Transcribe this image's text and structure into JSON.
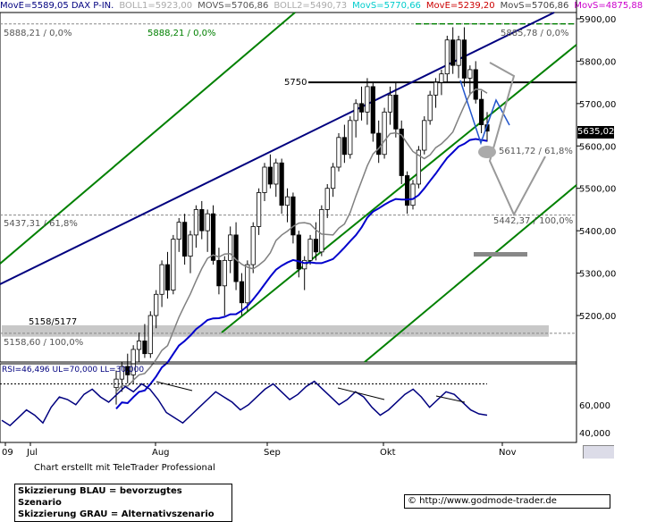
{
  "legend": [
    {
      "text": "MovE=5589,05 DAX P-IN.",
      "color": "#00007f"
    },
    {
      "text": "BOLL1=5923,00",
      "color": "#aaaaaa"
    },
    {
      "text": "MOVS=5706,86",
      "color": "#555555"
    },
    {
      "text": "BOLL2=5490,73",
      "color": "#aaaaaa"
    },
    {
      "text": "MovS=5770,66",
      "color": "#00cccc"
    },
    {
      "text": "MovE=5239,20",
      "color": "#cc0000"
    },
    {
      "text": "MovS=5706,86",
      "color": "#444444"
    },
    {
      "text": "MovS=4875,88",
      "color": "#cc00cc"
    }
  ],
  "price_axis": {
    "ticks": [
      "5900,00",
      "5800,00",
      "5700,00",
      "5600,00",
      "5500,00",
      "5400,00",
      "5300,00",
      "5200,00"
    ],
    "last_price": "5635,02"
  },
  "rsi_axis": {
    "ticks": [
      "60,000",
      "40,000"
    ]
  },
  "x_axis": {
    "labels": [
      "09",
      "Jul",
      "Aug",
      "Sep",
      "Okt",
      "Nov"
    ]
  },
  "annotations": {
    "a5888_left": "5888,21 / 0,0%",
    "a5888_mid": "5888,21 / 0,0%",
    "a5885": "5885,78 / 0,0%",
    "a5750": "5750",
    "a5611": "5611,72 / 61,8%",
    "a5437": "5437,31 / 61,8%",
    "a5442": "5442,37 / 100,0%",
    "a5158_5177": "5158/5177",
    "a5158": "5158,60 / 100,0%"
  },
  "rsi_label": "RSI=46,496 UL=70,000 LL=30,000",
  "credit": "Chart erstellt mit TeleTrader Professional",
  "notes": [
    "Skizzierung BLAU = bevorzugtes Szenario",
    "Skizzierung GRAU = Alternativszenario"
  ],
  "url": "© http://www.godmode-trader.de",
  "colors": {
    "blue": "#00007f",
    "green": "#008000",
    "gray": "#808080",
    "light_gray": "#c8c8c8",
    "scenario_blue": "#2255cc",
    "scenario_gray": "#999999"
  },
  "chart_data": {
    "type": "line",
    "title": "DAX P-IN.",
    "ylim": [
      5100,
      5930
    ],
    "x_months": [
      "Jul",
      "Aug",
      "Sep",
      "Okt",
      "Nov"
    ],
    "candles": [
      [
        5030,
        5070,
        4990,
        5050
      ],
      [
        5050,
        5090,
        5020,
        5080
      ],
      [
        5080,
        5110,
        5040,
        5060
      ],
      [
        5060,
        5130,
        5040,
        5120
      ],
      [
        5120,
        5160,
        5090,
        5140
      ],
      [
        5140,
        5180,
        5100,
        5110
      ],
      [
        5110,
        5210,
        5100,
        5200
      ],
      [
        5200,
        5260,
        5170,
        5250
      ],
      [
        5250,
        5330,
        5220,
        5320
      ],
      [
        5320,
        5350,
        5240,
        5260
      ],
      [
        5260,
        5390,
        5250,
        5380
      ],
      [
        5380,
        5430,
        5350,
        5420
      ],
      [
        5420,
        5440,
        5320,
        5340
      ],
      [
        5340,
        5400,
        5300,
        5390
      ],
      [
        5390,
        5460,
        5360,
        5450
      ],
      [
        5450,
        5470,
        5380,
        5400
      ],
      [
        5400,
        5450,
        5350,
        5440
      ],
      [
        5440,
        5460,
        5320,
        5330
      ],
      [
        5330,
        5360,
        5250,
        5270
      ],
      [
        5270,
        5340,
        5200,
        5330
      ],
      [
        5330,
        5410,
        5300,
        5390
      ],
      [
        5390,
        5420,
        5260,
        5280
      ],
      [
        5280,
        5300,
        5200,
        5230
      ],
      [
        5230,
        5330,
        5210,
        5320
      ],
      [
        5320,
        5420,
        5300,
        5410
      ],
      [
        5410,
        5500,
        5390,
        5490
      ],
      [
        5490,
        5560,
        5470,
        5550
      ],
      [
        5550,
        5580,
        5500,
        5510
      ],
      [
        5510,
        5570,
        5480,
        5560
      ],
      [
        5560,
        5570,
        5440,
        5460
      ],
      [
        5460,
        5500,
        5420,
        5480
      ],
      [
        5480,
        5490,
        5370,
        5390
      ],
      [
        5390,
        5400,
        5290,
        5310
      ],
      [
        5310,
        5340,
        5260,
        5330
      ],
      [
        5330,
        5390,
        5320,
        5380
      ],
      [
        5380,
        5420,
        5330,
        5350
      ],
      [
        5350,
        5460,
        5340,
        5450
      ],
      [
        5450,
        5510,
        5430,
        5500
      ],
      [
        5500,
        5560,
        5480,
        5550
      ],
      [
        5550,
        5630,
        5540,
        5620
      ],
      [
        5620,
        5650,
        5560,
        5580
      ],
      [
        5580,
        5670,
        5570,
        5660
      ],
      [
        5660,
        5710,
        5620,
        5700
      ],
      [
        5700,
        5740,
        5660,
        5680
      ],
      [
        5680,
        5760,
        5650,
        5740
      ],
      [
        5740,
        5750,
        5610,
        5630
      ],
      [
        5630,
        5660,
        5560,
        5580
      ],
      [
        5580,
        5690,
        5570,
        5680
      ],
      [
        5680,
        5740,
        5650,
        5720
      ],
      [
        5720,
        5750,
        5620,
        5640
      ],
      [
        5640,
        5660,
        5510,
        5530
      ],
      [
        5530,
        5540,
        5440,
        5460
      ],
      [
        5460,
        5520,
        5450,
        5510
      ],
      [
        5510,
        5600,
        5500,
        5590
      ],
      [
        5590,
        5670,
        5580,
        5660
      ],
      [
        5660,
        5730,
        5650,
        5720
      ],
      [
        5720,
        5760,
        5690,
        5750
      ],
      [
        5750,
        5780,
        5720,
        5770
      ],
      [
        5770,
        5860,
        5750,
        5850
      ],
      [
        5850,
        5880,
        5770,
        5790
      ],
      [
        5790,
        5860,
        5760,
        5850
      ],
      [
        5850,
        5880,
        5740,
        5760
      ],
      [
        5760,
        5790,
        5720,
        5780
      ],
      [
        5780,
        5800,
        5700,
        5710
      ],
      [
        5710,
        5730,
        5630,
        5650
      ],
      [
        5650,
        5680,
        5610,
        5635
      ]
    ],
    "rsi": [
      42,
      38,
      44,
      50,
      46,
      40,
      52,
      60,
      58,
      54,
      62,
      66,
      60,
      56,
      62,
      68,
      64,
      70,
      66,
      58,
      48,
      44,
      40,
      46,
      52,
      58,
      64,
      60,
      56,
      50,
      54,
      60,
      66,
      70,
      64,
      58,
      62,
      68,
      72,
      66,
      60,
      54,
      58,
      64,
      60,
      52,
      46,
      50,
      56,
      62,
      66,
      60,
      52,
      58,
      64,
      62,
      56,
      50,
      47,
      46
    ],
    "ma_gray": [],
    "ma_blue": []
  }
}
